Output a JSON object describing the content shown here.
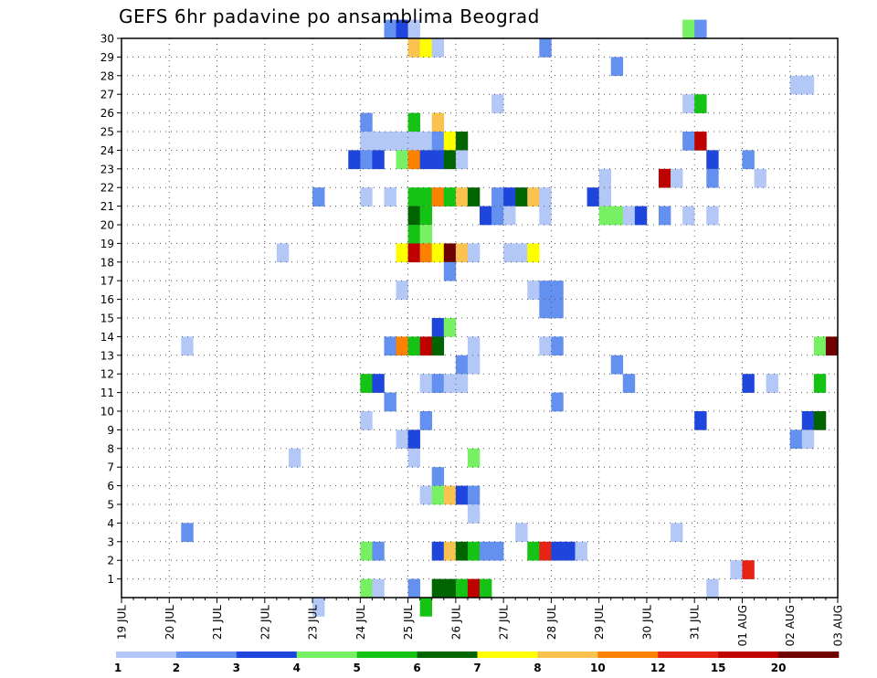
{
  "chart_data": {
    "type": "heatmap",
    "title": "GEFS 6hr padavine po ansamblima Beograd",
    "x_ticks": [
      "19 JUL",
      "20 JUL",
      "21 JUL",
      "22 JUL",
      "23 JUL",
      "24 JUL",
      "25 JUL",
      "26 JUL",
      "27 JUL",
      "28 JUL",
      "29 JUL",
      "30 JUL",
      "31 JUL",
      "01 AUG",
      "02 AUG",
      "03 AUG"
    ],
    "y_ticks": [
      "1",
      "2",
      "3",
      "4",
      "5",
      "6",
      "7",
      "8",
      "9",
      "10",
      "11",
      "12",
      "13",
      "14",
      "15",
      "16",
      "17",
      "18",
      "19",
      "20",
      "21",
      "22",
      "23",
      "24",
      "25",
      "26",
      "27",
      "28",
      "29",
      "30"
    ],
    "legend": {
      "labels": [
        "1",
        "2",
        "3",
        "4",
        "5",
        "6",
        "7",
        "8",
        "10",
        "12",
        "15",
        "20"
      ],
      "colors": [
        "#b4c8f8",
        "#6490f0",
        "#1e46dc",
        "#78f064",
        "#14c314",
        "#006400",
        "#ffff00",
        "#fac350",
        "#fa8200",
        "#e62314",
        "#be0000",
        "#6e0000"
      ]
    },
    "cells": [
      {
        "ens": 30,
        "step": 22,
        "v": 2
      },
      {
        "ens": 30,
        "step": 23,
        "v": 3
      },
      {
        "ens": 30,
        "step": 24,
        "v": 1
      },
      {
        "ens": 30,
        "step": 47,
        "v": 4
      },
      {
        "ens": 30,
        "step": 48,
        "v": 2
      },
      {
        "ens": 29,
        "step": 24,
        "v": 8
      },
      {
        "ens": 29,
        "step": 25,
        "v": 7
      },
      {
        "ens": 29,
        "step": 26,
        "v": 1
      },
      {
        "ens": 29,
        "step": 35,
        "v": 2
      },
      {
        "ens": 28,
        "step": 41,
        "v": 2
      },
      {
        "ens": 27,
        "step": 56,
        "v": 1
      },
      {
        "ens": 27,
        "step": 57,
        "v": 1
      },
      {
        "ens": 26,
        "step": 31,
        "v": 1
      },
      {
        "ens": 26,
        "step": 47,
        "v": 1
      },
      {
        "ens": 26,
        "step": 48,
        "v": 5
      },
      {
        "ens": 25,
        "step": 20,
        "v": 2
      },
      {
        "ens": 25,
        "step": 24,
        "v": 5
      },
      {
        "ens": 25,
        "step": 26,
        "v": 8
      },
      {
        "ens": 24,
        "step": 20,
        "v": 1
      },
      {
        "ens": 24,
        "step": 21,
        "v": 1
      },
      {
        "ens": 24,
        "step": 22,
        "v": 1
      },
      {
        "ens": 24,
        "step": 23,
        "v": 1
      },
      {
        "ens": 24,
        "step": 24,
        "v": 1
      },
      {
        "ens": 24,
        "step": 25,
        "v": 1
      },
      {
        "ens": 24,
        "step": 26,
        "v": 2
      },
      {
        "ens": 24,
        "step": 27,
        "v": 7
      },
      {
        "ens": 24,
        "step": 28,
        "v": 6
      },
      {
        "ens": 24,
        "step": 47,
        "v": 2
      },
      {
        "ens": 24,
        "step": 48,
        "v": 15
      },
      {
        "ens": 23,
        "step": 19,
        "v": 3
      },
      {
        "ens": 23,
        "step": 20,
        "v": 2
      },
      {
        "ens": 23,
        "step": 21,
        "v": 3
      },
      {
        "ens": 23,
        "step": 23,
        "v": 4
      },
      {
        "ens": 23,
        "step": 24,
        "v": 10
      },
      {
        "ens": 23,
        "step": 25,
        "v": 3
      },
      {
        "ens": 23,
        "step": 26,
        "v": 3
      },
      {
        "ens": 23,
        "step": 27,
        "v": 6
      },
      {
        "ens": 23,
        "step": 28,
        "v": 1
      },
      {
        "ens": 23,
        "step": 49,
        "v": 3
      },
      {
        "ens": 23,
        "step": 52,
        "v": 2
      },
      {
        "ens": 22,
        "step": 40,
        "v": 1
      },
      {
        "ens": 22,
        "step": 45,
        "v": 15
      },
      {
        "ens": 22,
        "step": 46,
        "v": 1
      },
      {
        "ens": 22,
        "step": 49,
        "v": 2
      },
      {
        "ens": 22,
        "step": 53,
        "v": 1
      },
      {
        "ens": 21,
        "step": 16,
        "v": 2
      },
      {
        "ens": 21,
        "step": 20,
        "v": 1
      },
      {
        "ens": 21,
        "step": 22,
        "v": 1
      },
      {
        "ens": 21,
        "step": 24,
        "v": 5
      },
      {
        "ens": 21,
        "step": 25,
        "v": 5
      },
      {
        "ens": 21,
        "step": 26,
        "v": 10
      },
      {
        "ens": 21,
        "step": 27,
        "v": 5
      },
      {
        "ens": 21,
        "step": 28,
        "v": 8
      },
      {
        "ens": 21,
        "step": 29,
        "v": 6
      },
      {
        "ens": 21,
        "step": 31,
        "v": 2
      },
      {
        "ens": 21,
        "step": 32,
        "v": 3
      },
      {
        "ens": 21,
        "step": 33,
        "v": 6
      },
      {
        "ens": 21,
        "step": 34,
        "v": 8
      },
      {
        "ens": 21,
        "step": 35,
        "v": 1
      },
      {
        "ens": 21,
        "step": 39,
        "v": 3
      },
      {
        "ens": 21,
        "step": 40,
        "v": 1
      },
      {
        "ens": 20,
        "step": 24,
        "v": 6
      },
      {
        "ens": 20,
        "step": 25,
        "v": 5
      },
      {
        "ens": 20,
        "step": 30,
        "v": 3
      },
      {
        "ens": 20,
        "step": 31,
        "v": 2
      },
      {
        "ens": 20,
        "step": 32,
        "v": 1
      },
      {
        "ens": 20,
        "step": 35,
        "v": 1
      },
      {
        "ens": 20,
        "step": 40,
        "v": 4
      },
      {
        "ens": 20,
        "step": 41,
        "v": 4
      },
      {
        "ens": 20,
        "step": 42,
        "v": 1
      },
      {
        "ens": 20,
        "step": 43,
        "v": 3
      },
      {
        "ens": 20,
        "step": 45,
        "v": 2
      },
      {
        "ens": 20,
        "step": 47,
        "v": 1
      },
      {
        "ens": 20,
        "step": 49,
        "v": 1
      },
      {
        "ens": 19,
        "step": 24,
        "v": 5
      },
      {
        "ens": 19,
        "step": 25,
        "v": 4
      },
      {
        "ens": 18,
        "step": 13,
        "v": 1
      },
      {
        "ens": 18,
        "step": 23,
        "v": 7
      },
      {
        "ens": 18,
        "step": 24,
        "v": 15
      },
      {
        "ens": 18,
        "step": 25,
        "v": 10
      },
      {
        "ens": 18,
        "step": 26,
        "v": 7
      },
      {
        "ens": 18,
        "step": 27,
        "v": 20
      },
      {
        "ens": 18,
        "step": 28,
        "v": 8
      },
      {
        "ens": 18,
        "step": 29,
        "v": 1
      },
      {
        "ens": 18,
        "step": 32,
        "v": 1
      },
      {
        "ens": 18,
        "step": 33,
        "v": 1
      },
      {
        "ens": 18,
        "step": 34,
        "v": 7
      },
      {
        "ens": 17,
        "step": 27,
        "v": 2
      },
      {
        "ens": 16,
        "step": 23,
        "v": 1
      },
      {
        "ens": 16,
        "step": 34,
        "v": 1
      },
      {
        "ens": 16,
        "step": 35,
        "v": 2
      },
      {
        "ens": 16,
        "step": 36,
        "v": 2
      },
      {
        "ens": 15,
        "step": 35,
        "v": 2
      },
      {
        "ens": 15,
        "step": 36,
        "v": 2
      },
      {
        "ens": 14,
        "step": 26,
        "v": 3
      },
      {
        "ens": 14,
        "step": 27,
        "v": 4
      },
      {
        "ens": 13,
        "step": 5,
        "v": 1
      },
      {
        "ens": 13,
        "step": 22,
        "v": 2
      },
      {
        "ens": 13,
        "step": 23,
        "v": 10
      },
      {
        "ens": 13,
        "step": 24,
        "v": 5
      },
      {
        "ens": 13,
        "step": 25,
        "v": 15
      },
      {
        "ens": 13,
        "step": 26,
        "v": 6
      },
      {
        "ens": 13,
        "step": 29,
        "v": 1
      },
      {
        "ens": 13,
        "step": 35,
        "v": 1
      },
      {
        "ens": 13,
        "step": 36,
        "v": 2
      },
      {
        "ens": 13,
        "step": 58,
        "v": 4
      },
      {
        "ens": 13,
        "step": 59,
        "v": 20
      },
      {
        "ens": 12,
        "step": 28,
        "v": 2
      },
      {
        "ens": 12,
        "step": 29,
        "v": 1
      },
      {
        "ens": 12,
        "step": 41,
        "v": 2
      },
      {
        "ens": 11,
        "step": 20,
        "v": 5
      },
      {
        "ens": 11,
        "step": 21,
        "v": 3
      },
      {
        "ens": 11,
        "step": 25,
        "v": 1
      },
      {
        "ens": 11,
        "step": 26,
        "v": 2
      },
      {
        "ens": 11,
        "step": 27,
        "v": 1
      },
      {
        "ens": 11,
        "step": 28,
        "v": 1
      },
      {
        "ens": 11,
        "step": 42,
        "v": 2
      },
      {
        "ens": 11,
        "step": 52,
        "v": 3
      },
      {
        "ens": 11,
        "step": 54,
        "v": 1
      },
      {
        "ens": 11,
        "step": 58,
        "v": 5
      },
      {
        "ens": 10,
        "step": 22,
        "v": 2
      },
      {
        "ens": 10,
        "step": 36,
        "v": 2
      },
      {
        "ens": 9,
        "step": 20,
        "v": 1
      },
      {
        "ens": 9,
        "step": 25,
        "v": 2
      },
      {
        "ens": 9,
        "step": 48,
        "v": 3
      },
      {
        "ens": 9,
        "step": 57,
        "v": 3
      },
      {
        "ens": 9,
        "step": 58,
        "v": 6
      },
      {
        "ens": 8,
        "step": 23,
        "v": 1
      },
      {
        "ens": 8,
        "step": 24,
        "v": 3
      },
      {
        "ens": 8,
        "step": 56,
        "v": 2
      },
      {
        "ens": 8,
        "step": 57,
        "v": 1
      },
      {
        "ens": 7,
        "step": 14,
        "v": 1
      },
      {
        "ens": 7,
        "step": 24,
        "v": 1
      },
      {
        "ens": 7,
        "step": 29,
        "v": 4
      },
      {
        "ens": 6,
        "step": 26,
        "v": 2
      },
      {
        "ens": 5,
        "step": 25,
        "v": 1
      },
      {
        "ens": 5,
        "step": 26,
        "v": 4
      },
      {
        "ens": 5,
        "step": 27,
        "v": 8
      },
      {
        "ens": 5,
        "step": 28,
        "v": 3
      },
      {
        "ens": 5,
        "step": 29,
        "v": 2
      },
      {
        "ens": 4,
        "step": 29,
        "v": 1
      },
      {
        "ens": 3,
        "step": 5,
        "v": 2
      },
      {
        "ens": 3,
        "step": 33,
        "v": 1
      },
      {
        "ens": 3,
        "step": 46,
        "v": 1
      },
      {
        "ens": 2,
        "step": 20,
        "v": 4
      },
      {
        "ens": 2,
        "step": 21,
        "v": 2
      },
      {
        "ens": 2,
        "step": 26,
        "v": 3
      },
      {
        "ens": 2,
        "step": 27,
        "v": 8
      },
      {
        "ens": 2,
        "step": 28,
        "v": 6
      },
      {
        "ens": 2,
        "step": 29,
        "v": 5
      },
      {
        "ens": 2,
        "step": 30,
        "v": 2
      },
      {
        "ens": 2,
        "step": 31,
        "v": 2
      },
      {
        "ens": 2,
        "step": 34,
        "v": 5
      },
      {
        "ens": 2,
        "step": 35,
        "v": 12
      },
      {
        "ens": 2,
        "step": 36,
        "v": 3
      },
      {
        "ens": 2,
        "step": 37,
        "v": 3
      },
      {
        "ens": 2,
        "step": 38,
        "v": 1
      },
      {
        "ens": 1,
        "step": 51,
        "v": 1
      },
      {
        "ens": 1,
        "step": 52,
        "v": 12
      },
      {
        "ens": 0,
        "step": 20,
        "v": 4
      },
      {
        "ens": 0,
        "step": 21,
        "v": 1
      },
      {
        "ens": 0,
        "step": 24,
        "v": 2
      },
      {
        "ens": 0,
        "step": 26,
        "v": 6
      },
      {
        "ens": 0,
        "step": 27,
        "v": 6
      },
      {
        "ens": 0,
        "step": 28,
        "v": 5
      },
      {
        "ens": 0,
        "step": 29,
        "v": 15
      },
      {
        "ens": 0,
        "step": 30,
        "v": 5
      },
      {
        "ens": 0,
        "step": 49,
        "v": 1
      },
      {
        "ens": -1,
        "step": 16,
        "v": 1
      },
      {
        "ens": -1,
        "step": 25,
        "v": 5
      }
    ]
  }
}
